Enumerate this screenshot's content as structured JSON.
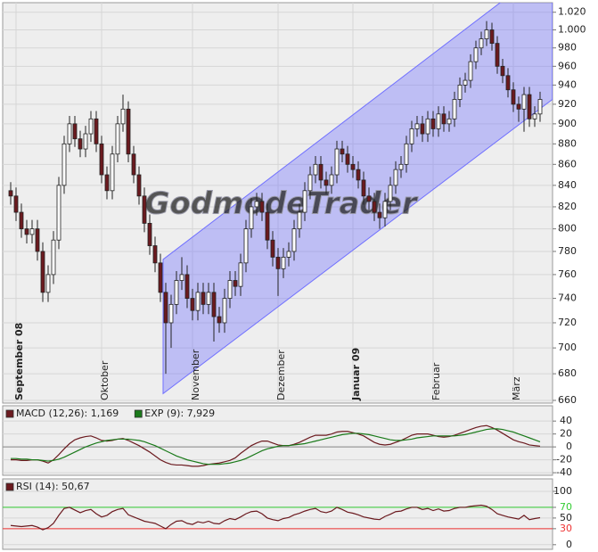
{
  "chart_data": [
    {
      "type": "candlestick",
      "categories": [
        null,
        "September 08",
        null,
        null,
        null,
        null,
        null,
        null,
        null,
        null,
        null,
        null,
        null,
        null,
        null,
        null,
        null,
        "Oktober",
        null,
        null,
        null,
        null,
        null,
        null,
        null,
        null,
        null,
        null,
        null,
        null,
        null,
        null,
        null,
        null,
        "November",
        null,
        null,
        null,
        null,
        null,
        null,
        null,
        null,
        null,
        null,
        null,
        null,
        null,
        null,
        null,
        "Dezember",
        null,
        null,
        null,
        null,
        null,
        null,
        null,
        null,
        null,
        null,
        null,
        null,
        null,
        "Januar 09",
        null,
        null,
        null,
        null,
        null,
        null,
        null,
        null,
        null,
        null,
        null,
        null,
        null,
        null,
        "Februar",
        null,
        null,
        null,
        null,
        null,
        null,
        null,
        null,
        null,
        null,
        null,
        null,
        null,
        null,
        "März",
        null,
        null,
        null,
        null,
        null
      ],
      "open": [
        835,
        830,
        815,
        800,
        795,
        800,
        780,
        745,
        760,
        790,
        840,
        880,
        900,
        885,
        875,
        890,
        905,
        880,
        850,
        835,
        870,
        900,
        915,
        870,
        850,
        830,
        805,
        785,
        770,
        745,
        720,
        735,
        755,
        760,
        740,
        730,
        745,
        735,
        745,
        725,
        720,
        740,
        755,
        750,
        770,
        800,
        820,
        825,
        815,
        790,
        775,
        765,
        775,
        780,
        800,
        815,
        835,
        850,
        860,
        845,
        840,
        850,
        875,
        870,
        860,
        855,
        845,
        830,
        825,
        815,
        810,
        825,
        840,
        855,
        860,
        880,
        895,
        900,
        890,
        905,
        895,
        910,
        900,
        905,
        925,
        940,
        945,
        965,
        980,
        990,
        1000,
        985,
        960,
        950,
        935,
        920,
        915,
        930,
        905,
        910
      ],
      "high": [
        843,
        838,
        823,
        808,
        808,
        808,
        788,
        768,
        798,
        848,
        888,
        908,
        908,
        893,
        898,
        913,
        913,
        888,
        858,
        878,
        908,
        930,
        923,
        878,
        858,
        838,
        813,
        793,
        778,
        753,
        743,
        763,
        775,
        768,
        748,
        753,
        753,
        753,
        753,
        733,
        748,
        763,
        763,
        778,
        808,
        828,
        833,
        833,
        823,
        798,
        783,
        783,
        788,
        808,
        823,
        843,
        858,
        868,
        868,
        853,
        858,
        883,
        883,
        878,
        868,
        863,
        853,
        838,
        833,
        823,
        833,
        848,
        863,
        868,
        888,
        903,
        908,
        908,
        913,
        913,
        918,
        918,
        913,
        933,
        948,
        953,
        973,
        988,
        998,
        1010,
        1008,
        993,
        968,
        958,
        943,
        928,
        938,
        938,
        918,
        933
      ],
      "low": [
        822,
        807,
        792,
        787,
        787,
        772,
        737,
        737,
        752,
        782,
        832,
        872,
        877,
        867,
        867,
        882,
        872,
        842,
        827,
        827,
        862,
        892,
        862,
        842,
        822,
        797,
        777,
        762,
        737,
        680,
        700,
        727,
        747,
        732,
        722,
        722,
        727,
        727,
        705,
        712,
        712,
        732,
        742,
        742,
        762,
        792,
        812,
        807,
        782,
        767,
        742,
        757,
        767,
        772,
        792,
        807,
        827,
        842,
        837,
        832,
        832,
        842,
        862,
        852,
        847,
        837,
        822,
        817,
        807,
        800,
        802,
        817,
        832,
        847,
        852,
        872,
        887,
        882,
        882,
        887,
        887,
        892,
        892,
        897,
        917,
        932,
        937,
        957,
        972,
        982,
        977,
        952,
        942,
        927,
        912,
        902,
        892,
        897,
        897,
        902
      ],
      "close": [
        830,
        815,
        800,
        795,
        800,
        780,
        745,
        760,
        790,
        840,
        880,
        900,
        885,
        875,
        890,
        905,
        880,
        850,
        835,
        870,
        900,
        915,
        870,
        850,
        830,
        805,
        785,
        770,
        745,
        720,
        735,
        755,
        760,
        740,
        730,
        745,
        735,
        745,
        725,
        720,
        740,
        755,
        750,
        770,
        800,
        820,
        825,
        815,
        790,
        775,
        765,
        775,
        780,
        800,
        815,
        835,
        850,
        860,
        845,
        840,
        850,
        875,
        870,
        860,
        855,
        845,
        830,
        825,
        815,
        810,
        825,
        840,
        855,
        860,
        880,
        895,
        900,
        890,
        905,
        895,
        910,
        900,
        905,
        925,
        940,
        945,
        965,
        980,
        990,
        1000,
        985,
        960,
        950,
        935,
        920,
        915,
        930,
        905,
        910,
        925
      ],
      "up_color": "#ffffff",
      "down_color": "#6b1a1f",
      "ylim": [
        658,
        1031
      ],
      "yticks": [
        660,
        680,
        700,
        720,
        740,
        760,
        780,
        800,
        820,
        840,
        860,
        880,
        900,
        920,
        940,
        960,
        980,
        {
          "value": 1000,
          "label": "1.000"
        },
        {
          "value": 1020,
          "label": "1.020"
        }
      ],
      "log_scale": true,
      "grid": true,
      "channel": {
        "x": [
          28.5,
          101.3
        ],
        "upper": [
          773,
          1078
        ],
        "lower": [
          665,
          925
        ],
        "color": "#7070ff"
      },
      "watermark": "GodmodeTrader"
    },
    {
      "type": "line",
      "series": [
        {
          "name": "MACD (12,26): 1,169",
          "color": "#6b1a1f",
          "values": [
            -20,
            -20,
            -21,
            -21,
            -20,
            -20,
            -22,
            -25,
            -20,
            -12,
            -3,
            5,
            11,
            14,
            16,
            17,
            14,
            10,
            9,
            10,
            12,
            13,
            10,
            6,
            2,
            -3,
            -8,
            -14,
            -20,
            -24,
            -27,
            -28,
            -28,
            -29,
            -30,
            -30,
            -29,
            -27,
            -26,
            -25,
            -23,
            -21,
            -17,
            -10,
            -4,
            2,
            6,
            9,
            9,
            6,
            3,
            2,
            2,
            4,
            7,
            11,
            15,
            18,
            18,
            18,
            20,
            23,
            24,
            24,
            22,
            20,
            17,
            12,
            7,
            4,
            3,
            4,
            7,
            10,
            14,
            18,
            20,
            20,
            20,
            18,
            16,
            15,
            16,
            18,
            21,
            24,
            27,
            30,
            32,
            33,
            30,
            26,
            21,
            16,
            11,
            8,
            6,
            3,
            2,
            1.169
          ]
        },
        {
          "name": "EXP (9): 7,929",
          "color": "#1a7a1a",
          "values": [
            -18,
            -18,
            -19,
            -19,
            -20,
            -20,
            -21,
            -22,
            -21,
            -19,
            -16,
            -12,
            -8,
            -4,
            0,
            3,
            6,
            8,
            10,
            11,
            12,
            12,
            12,
            11,
            10,
            8,
            5,
            2,
            -2,
            -6,
            -10,
            -14,
            -17,
            -20,
            -22,
            -24,
            -26,
            -27,
            -27,
            -27,
            -26,
            -25,
            -23,
            -21,
            -18,
            -14,
            -10,
            -6,
            -3,
            -1,
            1,
            2,
            2,
            3,
            4,
            5,
            7,
            9,
            11,
            13,
            15,
            17,
            19,
            20,
            21,
            21,
            20,
            19,
            17,
            15,
            13,
            11,
            10,
            10,
            11,
            12,
            14,
            15,
            16,
            17,
            17,
            17,
            17,
            17,
            18,
            19,
            21,
            23,
            25,
            27,
            28,
            28,
            27,
            25,
            23,
            20,
            17,
            14,
            11,
            7.929
          ]
        }
      ],
      "ylim": [
        -44,
        43
      ],
      "yticks": [
        -40,
        -20,
        0,
        20,
        40
      ],
      "zero_line": true
    },
    {
      "type": "line",
      "series": [
        {
          "name": "RSI (14): 50,67",
          "color": "#6b1a1f",
          "values": [
            36,
            35,
            34,
            35,
            36,
            33,
            28,
            32,
            40,
            55,
            68,
            70,
            65,
            60,
            64,
            66,
            58,
            52,
            55,
            62,
            66,
            68,
            56,
            52,
            48,
            44,
            42,
            40,
            35,
            30,
            38,
            44,
            45,
            40,
            38,
            43,
            41,
            44,
            40,
            39,
            45,
            49,
            47,
            52,
            58,
            62,
            63,
            58,
            50,
            47,
            45,
            49,
            51,
            56,
            59,
            63,
            66,
            68,
            62,
            60,
            63,
            70,
            66,
            61,
            59,
            56,
            52,
            50,
            48,
            47,
            53,
            57,
            62,
            63,
            67,
            70,
            70,
            66,
            68,
            64,
            67,
            63,
            64,
            68,
            70,
            70,
            72,
            73,
            74,
            72,
            66,
            58,
            55,
            52,
            50,
            48,
            55,
            47,
            49,
            50.67
          ]
        }
      ],
      "ylim": [
        -7,
        110
      ],
      "yticks": [
        0,
        30,
        50,
        70,
        100
      ],
      "levels": [
        {
          "value": 70,
          "color": "#33cc33"
        },
        {
          "value": 30,
          "color": "#ee3333"
        }
      ]
    }
  ]
}
